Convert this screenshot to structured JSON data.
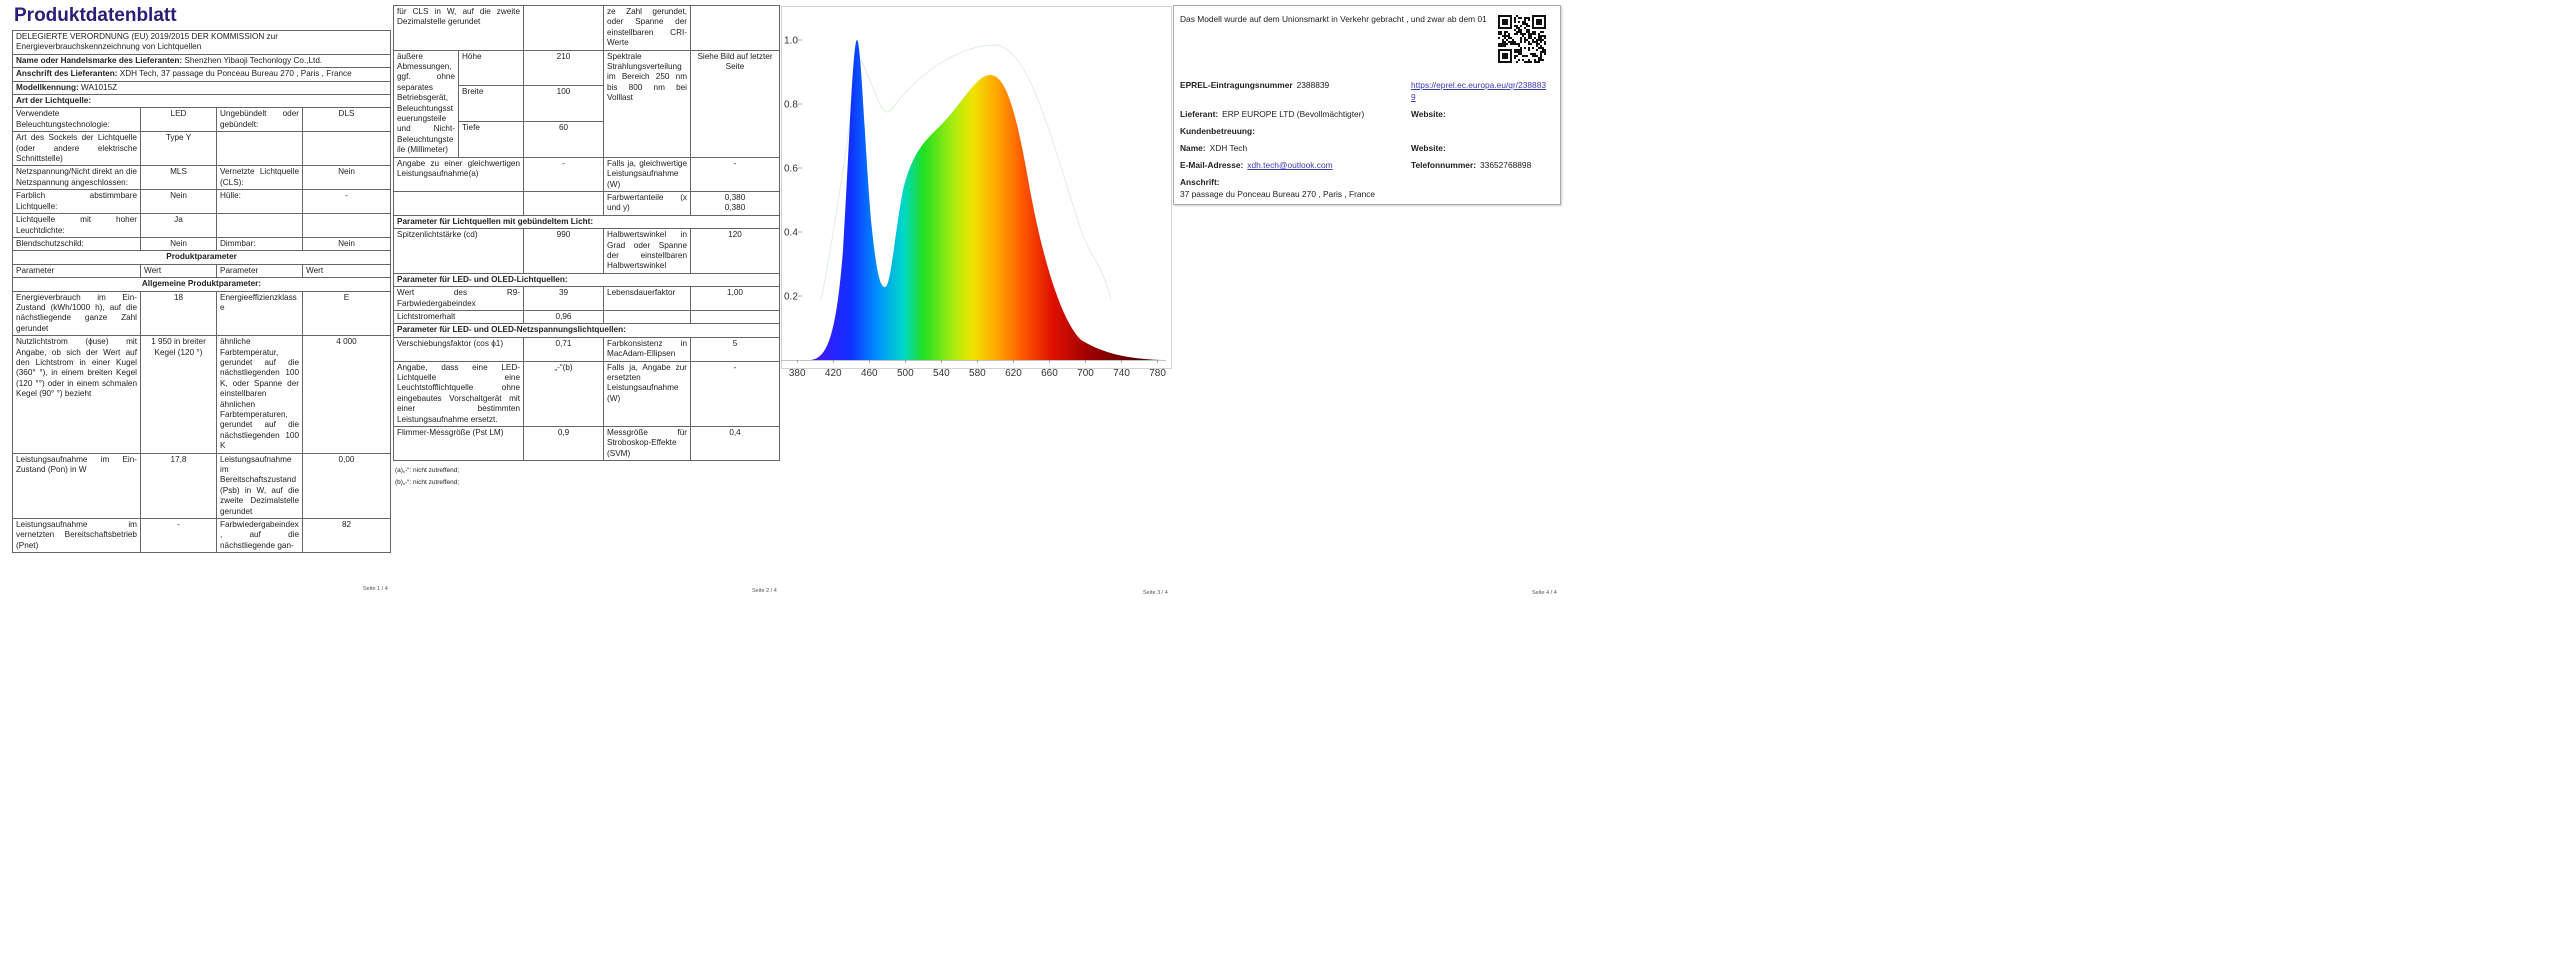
{
  "page1": {
    "title": "Produktdatenblatt",
    "rows": [
      {
        "text": "DELEGIERTE VERORDNUNG (EU) 2019/2015 DER KOMMISSION zur Energieverbrauchskennzeichnung von Lichtquellen"
      },
      {
        "label": "Name oder Handelsmarke des Lieferanten:",
        "value": "Shenzhen Yibaoji Techonlogy Co.,Ltd."
      },
      {
        "label": "Anschrift des Lieferanten:",
        "value": "XDH Tech, 37 passage du Ponceau Bureau 270 , Paris , France"
      },
      {
        "label": "Modellkennung:",
        "value": "WA1015Z"
      },
      {
        "heading": "Art der Lichtquelle:"
      },
      [
        "Verwendete Beleuchtungstechnologie:",
        "LED",
        "Ungebündelt oder gebündelt:",
        "DLS"
      ],
      [
        "Art des Sockels der Lichtquelle (oder andere elektrische Schnittstelle)",
        "Type Y",
        null,
        null
      ],
      [
        "Netzspannung/Nicht direkt an die Netzspannung angeschlossen:",
        "MLS",
        "Vernetzte Lichtquelle (CLS):",
        "Nein"
      ],
      [
        "Farblich abstimmbare Lichtquelle:",
        "Nein",
        "Hülle:",
        "-"
      ],
      [
        "Lichtquelle mit hoher Leuchtdichte:",
        "Ja",
        null,
        null
      ],
      [
        "Blendschutzschild:",
        "Nein",
        "Dimmbar:",
        "Nein"
      ],
      {
        "section": "Produktparameter"
      },
      {
        "header": [
          "Parameter",
          "Wert",
          "Parameter",
          "Wert"
        ]
      },
      {
        "section": "Allgemeine Produktparameter:"
      },
      [
        "Energieverbrauch im Ein-Zustand (kWh/1000 h), auf die nächstliegende ganze Zahl gerundet",
        "18",
        "Energieeffizienzklasse",
        "E"
      ],
      [
        "Nutzlichtstrom (ϕuse) mit Angabe, ob sich der Wert auf den Lichtstrom in einer Kugel (360° °), in einem breiten Kegel (120 °°) oder in einem schmalen Kegel (90° °) bezieht",
        "1 950 in breiter Kegel (120 °)",
        "ähnliche Farbtemperatur, gerundet auf die nächstliegenden 100 K, oder Spanne der einstellbaren ähnlichen Farbtemperaturen, gerundet auf die nächstliegenden 100 K",
        "4 000"
      ],
      [
        "Leistungsaufnahme im Ein-Zustand (Pon) in W",
        "17,8",
        "Leistungsaufnahme im Bereitschaftszustand (Psb) in W, auf die zweite Dezimalstelle gerundet",
        "0,00"
      ],
      [
        "Leistungsaufnahme im vernetzten Bereitschaftsbetrieb (Pnet)",
        "-",
        "Farbwiedergabeindex, auf die nächstliegende gan-",
        "82"
      ]
    ],
    "footer": "Seite 1 / 4"
  },
  "page2": {
    "rows": [
      [
        "für CLS in W, auf die zweite Dezimalstelle gerundet",
        null,
        "ze Zahl gerundet, oder Spanne der einstellbaren CRI-Werte",
        null
      ],
      {
        "dimensions": {
          "label": "äußere Abmessungen, ggf. ohne separates Betriebsgerät, Beleuchtungssteuerungsteile und Nicht-Beleuchtungsteile (Millimeter)",
          "items": [
            {
              "name": "Höhe",
              "value": "210"
            },
            {
              "name": "Breite",
              "value": "100"
            },
            {
              "name": "Tiefe",
              "value": "60"
            }
          ],
          "description": "Spektrale Strahlungsverteilung im Bereich 250 nm bis 800 nm bei Volllast",
          "reference": "Siehe Bild auf letzter Seite"
        }
      },
      [
        "Angabe zu einer gleichwertigen Leistungsaufnahme(a)",
        "-",
        "Falls ja, gleichwertige Leistungsaufnahme (W)",
        "-"
      ],
      [
        null,
        null,
        "Farbwertanteile (x und y)",
        [
          "0,380",
          "0,380"
        ]
      ],
      {
        "heading": "Parameter für Lichtquellen mit gebündeltem Licht:"
      },
      [
        "Spitzenlichtstärke (cd)",
        "990",
        "Halbwertswinkel in Grad oder Spanne der einstellbaren Halbwertswinkel",
        "120"
      ],
      {
        "heading": "Parameter für LED- und OLED-Lichtquellen:"
      },
      [
        "Wert des R9-Farbwiedergabeindex",
        "39",
        "Lebensdauerfaktor",
        "1,00"
      ],
      [
        "Lichtstromerhalt",
        "0,96",
        null,
        null
      ],
      {
        "heading": "Parameter für LED- und OLED-Netzspannungslichtquellen:"
      },
      [
        "Verschiebungsfaktor (cos ϕ1)",
        "0,71",
        "Farbkonsistenz in MacAdam-Ellipsen",
        "5"
      ],
      [
        "Angabe, dass eine LED-Lichtquelle eine Leuchtstofflichtquelle ohne eingebautes Vorschaltgerät mit einer bestimmten Leistungsaufnahme ersetzt.",
        "„-“(b)",
        "Falls ja, Angabe zur ersetzten Leistungsaufnahme (W)",
        "-"
      ],
      [
        "Flimmer-Messgröße (Pst LM)",
        "0,9",
        "Messgröße für Stroboskop-Effekte (SVM)",
        "0,4"
      ]
    ],
    "notes": [
      "(a)„-“: nicht zutreffend;",
      "(b)„-“: nicht zutreffend;"
    ],
    "footer": "Seite 2 / 4"
  },
  "page3": {
    "spectrum": {
      "xlim": [
        362,
        796
      ],
      "ylim": [
        0,
        1.1
      ],
      "xticks": [
        380,
        420,
        460,
        500,
        540,
        580,
        620,
        660,
        700,
        740,
        780
      ],
      "yticks": [
        0.2,
        0.4,
        0.6,
        0.8,
        {
          "value": 1,
          "label": "1.0"
        }
      ]
    },
    "footer": "Seite 3 / 4"
  },
  "page4": {
    "notice": "Das Modell wurde auf dem Unionsmarkt in Verkehr gebracht , und zwar ab dem 01",
    "eprel": {
      "label": "EPREL-Eintragungsnummer",
      "value": "2388839",
      "link": "https://eprel.ec.europa.eu/qr/2388839"
    },
    "supplier": {
      "label": "Lieferant:",
      "value": "ERP EUROPE LTD (Bevollmächtigter)",
      "website_label": "Website:"
    },
    "customer_service": "Kundenbetreuung:",
    "name": {
      "label": "Name:",
      "value": "XDH Tech",
      "website_label": "Website:"
    },
    "email": {
      "label": "E-Mail-Adresse:",
      "value": "xdh.tech@outlook.com"
    },
    "phone": {
      "label": "Telefonnummer:",
      "value": "33652768898"
    },
    "address": {
      "label": "Anschrift:",
      "value": "37 passage du Ponceau Bureau 270 , Paris , France"
    },
    "footer": "Seite 4 / 4"
  }
}
